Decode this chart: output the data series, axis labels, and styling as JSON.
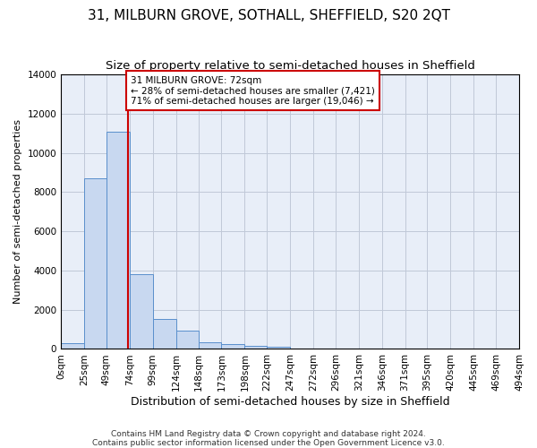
{
  "title": "31, MILBURN GROVE, SOTHALL, SHEFFIELD, S20 2QT",
  "subtitle": "Size of property relative to semi-detached houses in Sheffield",
  "xlabel": "Distribution of semi-detached houses by size in Sheffield",
  "ylabel": "Number of semi-detached properties",
  "bar_values": [
    300,
    8700,
    11100,
    3800,
    1550,
    950,
    350,
    230,
    150,
    100,
    0,
    0,
    0,
    0,
    0,
    0,
    0,
    0,
    0,
    0
  ],
  "bin_edges": [
    0,
    25,
    49,
    74,
    99,
    124,
    148,
    173,
    198,
    222,
    247,
    272,
    296,
    321,
    346,
    371,
    395,
    420,
    445,
    469,
    494
  ],
  "tick_labels": [
    "0sqm",
    "25sqm",
    "49sqm",
    "74sqm",
    "99sqm",
    "124sqm",
    "148sqm",
    "173sqm",
    "198sqm",
    "222sqm",
    "247sqm",
    "272sqm",
    "296sqm",
    "321sqm",
    "346sqm",
    "371sqm",
    "395sqm",
    "420sqm",
    "445sqm",
    "469sqm",
    "494sqm"
  ],
  "bar_color": "#c8d8f0",
  "bar_edge_color": "#5a8fcc",
  "property_size": 72,
  "vline_color": "#cc0000",
  "vline_x": 72,
  "annotation_text": "31 MILBURN GROVE: 72sqm\n← 28% of semi-detached houses are smaller (7,421)\n71% of semi-detached houses are larger (19,046) →",
  "annotation_box_color": "#ffffff",
  "annotation_box_edge": "#cc0000",
  "ylim": [
    0,
    14000
  ],
  "yticks": [
    0,
    2000,
    4000,
    6000,
    8000,
    10000,
    12000,
    14000
  ],
  "grid_color": "#c0c8d8",
  "bg_color": "#e8eef8",
  "footer": "Contains HM Land Registry data © Crown copyright and database right 2024.\nContains public sector information licensed under the Open Government Licence v3.0.",
  "title_fontsize": 11,
  "subtitle_fontsize": 9.5,
  "xlabel_fontsize": 9,
  "ylabel_fontsize": 8,
  "tick_fontsize": 7.5,
  "annotation_fontsize": 7.5,
  "footer_fontsize": 6.5
}
